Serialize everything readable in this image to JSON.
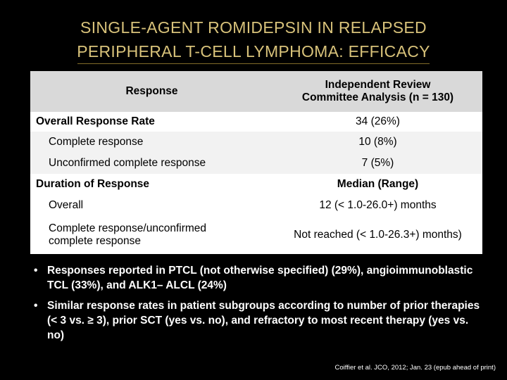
{
  "title": {
    "line1": "SINGLE-AGENT ROMIDEPSIN IN RELAPSED",
    "line2": "PERIPHERAL T-CELL LYMPHOMA: EFFICACY"
  },
  "table": {
    "header": {
      "col1": "Response",
      "col2_line1": "Independent Review",
      "col2_line2": "Committee Analysis (n = 130)"
    },
    "rows": [
      {
        "label": "Overall Response Rate",
        "value": "34 (26%)"
      },
      {
        "label": "Complete response",
        "value": "10 (8%)"
      },
      {
        "label": "Unconfirmed complete response",
        "value": "7 (5%)"
      },
      {
        "label": "Duration of Response",
        "value": "Median (Range)"
      },
      {
        "label": "Overall",
        "value": "12 (< 1.0-26.0+) months"
      },
      {
        "label_line1": "Complete response/unconfirmed",
        "label_line2": "complete response",
        "value": "Not reached (< 1.0-26.3+) months)"
      }
    ]
  },
  "bullets": [
    {
      "text": "Responses reported in PTCL (not otherwise specified) (29%), angioimmunoblastic TCL (33%), and ALK1– ALCL (24%)"
    },
    {
      "text": "Similar response rates in patient subgroups according to number of prior therapies (< 3 vs. ≥ 3), prior SCT (yes vs. no), and refractory to most recent therapy (yes vs. no)"
    }
  ],
  "citation": "Coiffier et al. JCO, 2012; Jan. 23 (epub ahead of print)",
  "colors": {
    "background": "#000000",
    "title": "#d8c27a",
    "header_bg": "#d9d9d9"
  }
}
